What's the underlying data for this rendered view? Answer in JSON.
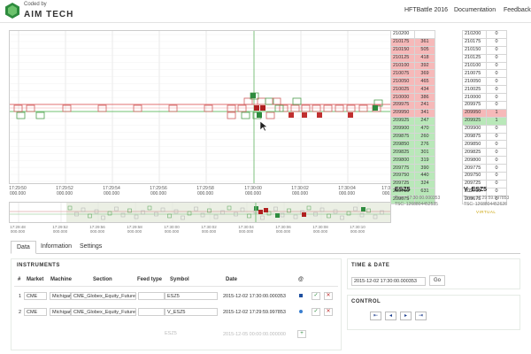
{
  "header": {
    "coded_by": "Coded by",
    "brand": "AIM TECH",
    "nav": [
      "HFTBattle 2016",
      "Documentation",
      "Feedback"
    ]
  },
  "chart": {
    "x_ticks": [
      {
        "time": "17:29:50",
        "sub": "000.000"
      },
      {
        "time": "17:29:52",
        "sub": "000.000"
      },
      {
        "time": "17:29:54",
        "sub": "000.000"
      },
      {
        "time": "17:29:56",
        "sub": "000.000"
      },
      {
        "time": "17:29:58",
        "sub": "000.000"
      },
      {
        "time": "17:30:00",
        "sub": "000.000"
      },
      {
        "time": "17:30:02",
        "sub": "000.000"
      },
      {
        "time": "17:30:04",
        "sub": "000.000"
      },
      {
        "time": "17:30:06",
        "sub": "000.000"
      }
    ],
    "overview_ticks": [
      {
        "time": "17:29:48",
        "sub": "000.000"
      },
      {
        "time": "17:29:52",
        "sub": "000.000"
      },
      {
        "time": "17:29:56",
        "sub": "000.000"
      },
      {
        "time": "17:29:58",
        "sub": "000.000"
      },
      {
        "time": "17:30:00",
        "sub": "000.000"
      },
      {
        "time": "17:30:02",
        "sub": "000.000"
      },
      {
        "time": "17:30:04",
        "sub": "000.000"
      },
      {
        "time": "17:30:06",
        "sub": "000.000"
      },
      {
        "time": "17:30:08",
        "sub": "000.000"
      },
      {
        "time": "17:30:10",
        "sub": "000.000"
      }
    ]
  },
  "book1": {
    "symbol": "ESZ5",
    "time_label": "Time: 17:30:00.000353",
    "tsc_label": "TSC: 1268804452535",
    "rows": [
      {
        "price": "210200",
        "qty": "",
        "side": "none"
      },
      {
        "price": "210175",
        "qty": "361",
        "side": "ask"
      },
      {
        "price": "210150",
        "qty": "505",
        "side": "ask"
      },
      {
        "price": "210125",
        "qty": "418",
        "side": "ask"
      },
      {
        "price": "210100",
        "qty": "392",
        "side": "ask"
      },
      {
        "price": "210075",
        "qty": "369",
        "side": "ask"
      },
      {
        "price": "210050",
        "qty": "465",
        "side": "ask"
      },
      {
        "price": "210025",
        "qty": "434",
        "side": "ask"
      },
      {
        "price": "210000",
        "qty": "386",
        "side": "ask"
      },
      {
        "price": "209975",
        "qty": "241",
        "side": "ask"
      },
      {
        "price": "209950",
        "qty": "341",
        "side": "ask"
      },
      {
        "price": "209925",
        "qty": "247",
        "side": "bid"
      },
      {
        "price": "209900",
        "qty": "470",
        "side": "bid"
      },
      {
        "price": "209875",
        "qty": "260",
        "side": "bid"
      },
      {
        "price": "209850",
        "qty": "276",
        "side": "bid"
      },
      {
        "price": "209825",
        "qty": "301",
        "side": "bid"
      },
      {
        "price": "209800",
        "qty": "319",
        "side": "bid"
      },
      {
        "price": "209775",
        "qty": "390",
        "side": "bid"
      },
      {
        "price": "209750",
        "qty": "440",
        "side": "bid"
      },
      {
        "price": "209725",
        "qty": "324",
        "side": "bid"
      },
      {
        "price": "209700",
        "qty": "631",
        "side": "bid"
      },
      {
        "price": "209675",
        "qty": "",
        "side": "bid"
      }
    ]
  },
  "book2": {
    "symbol": "V_ESZ5",
    "time_label": "Time: 17:29:59.997853",
    "tsc_label": "TSC: 1268804452626",
    "virtual": "VIRTUAL",
    "rows": [
      {
        "price": "210200",
        "qty": "0",
        "side": "none"
      },
      {
        "price": "210175",
        "qty": "0",
        "side": "none"
      },
      {
        "price": "210150",
        "qty": "0",
        "side": "none"
      },
      {
        "price": "210125",
        "qty": "0",
        "side": "none"
      },
      {
        "price": "210100",
        "qty": "0",
        "side": "none"
      },
      {
        "price": "210075",
        "qty": "0",
        "side": "none"
      },
      {
        "price": "210050",
        "qty": "0",
        "side": "none"
      },
      {
        "price": "210025",
        "qty": "0",
        "side": "none"
      },
      {
        "price": "210000",
        "qty": "0",
        "side": "none"
      },
      {
        "price": "209975",
        "qty": "0",
        "side": "none"
      },
      {
        "price": "209950",
        "qty": "1",
        "side": "ask"
      },
      {
        "price": "209925",
        "qty": "1",
        "side": "bid"
      },
      {
        "price": "209900",
        "qty": "0",
        "side": "none"
      },
      {
        "price": "209875",
        "qty": "0",
        "side": "none"
      },
      {
        "price": "209850",
        "qty": "0",
        "side": "none"
      },
      {
        "price": "209825",
        "qty": "0",
        "side": "none"
      },
      {
        "price": "209800",
        "qty": "0",
        "side": "none"
      },
      {
        "price": "209775",
        "qty": "0",
        "side": "none"
      },
      {
        "price": "209750",
        "qty": "0",
        "side": "none"
      },
      {
        "price": "209725",
        "qty": "0",
        "side": "none"
      },
      {
        "price": "209700",
        "qty": "0",
        "side": "none"
      },
      {
        "price": "209675",
        "qty": "0",
        "side": "none"
      }
    ]
  },
  "tabs": [
    "Data",
    "Information",
    "Settings"
  ],
  "instruments": {
    "title": "INSTRUMENTS",
    "headers": [
      "#",
      "Market",
      "Machine",
      "Section",
      "Feed type",
      "Symbol",
      "Date",
      "@"
    ],
    "rows": [
      {
        "num": "1",
        "market": "CME",
        "machine": "Michigan",
        "section": "CME_Globex_Equity_Future",
        "symbol": "ESZ5",
        "date": "2015-12-02 17:30:00.000353",
        "color": "#1f4f9f"
      },
      {
        "num": "2",
        "market": "CME",
        "machine": "Michigan",
        "section": "CME_Globex_Equity_Future",
        "symbol": "V_ESZ5",
        "date": "2015-12-02 17:29:59.997853",
        "color": "#3a7fd0"
      }
    ],
    "new_row": {
      "symbol": "ESZ5",
      "date": "2015-12-05 00:00:00.000000"
    }
  },
  "time_date": {
    "title": "TIME & DATE",
    "value": "2015-12-02 17:30:00.000353",
    "go_label": "Go"
  },
  "control": {
    "title": "CONTROL",
    "buttons": [
      "⇤",
      "◂",
      "▸",
      "⇥"
    ]
  },
  "colors": {
    "ask": "#f6b9b9",
    "bid": "#b9e8b9",
    "accent": "#1f3f8f"
  }
}
